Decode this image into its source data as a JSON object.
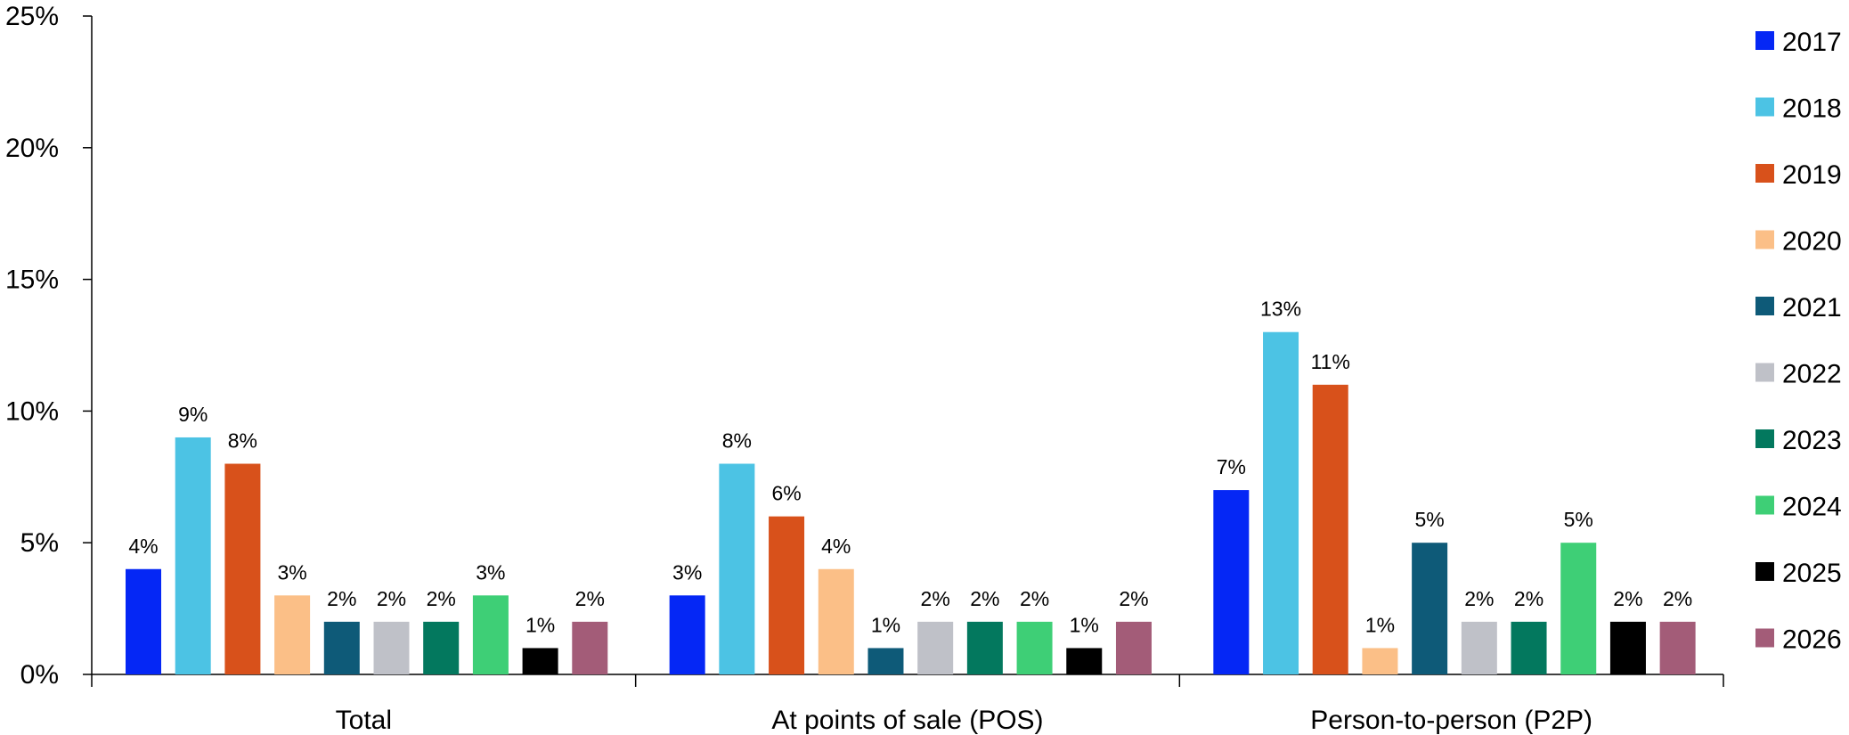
{
  "chart_data": {
    "type": "bar",
    "title": "",
    "xlabel": "",
    "ylabel": "",
    "ylim": [
      0,
      25
    ],
    "y_ticks": [
      "0%",
      "5%",
      "10%",
      "15%",
      "20%",
      "25%"
    ],
    "y_tick_values": [
      0,
      5,
      10,
      15,
      20,
      25
    ],
    "grid": false,
    "legend_position": "right",
    "categories": [
      "Total",
      "At points of sale (POS)",
      "Person-to-person (P2P)"
    ],
    "series": [
      {
        "name": "2017",
        "color": "#0527F5",
        "values": [
          4,
          3,
          7
        ],
        "labels": [
          "4%",
          "3%",
          "7%"
        ]
      },
      {
        "name": "2018",
        "color": "#4CC3E4",
        "values": [
          9,
          8,
          13
        ],
        "labels": [
          "9%",
          "8%",
          "13%"
        ]
      },
      {
        "name": "2019",
        "color": "#D8511B",
        "values": [
          8,
          6,
          11
        ],
        "labels": [
          "8%",
          "6%",
          "11%"
        ]
      },
      {
        "name": "2020",
        "color": "#FBBF87",
        "values": [
          3,
          4,
          1
        ],
        "labels": [
          "3%",
          "4%",
          "1%"
        ]
      },
      {
        "name": "2021",
        "color": "#0E5A78",
        "values": [
          2,
          1,
          5
        ],
        "labels": [
          "2%",
          "1%",
          "5%"
        ]
      },
      {
        "name": "2022",
        "color": "#BFC1C8",
        "values": [
          2,
          2,
          2
        ],
        "labels": [
          "2%",
          "2%",
          "2%"
        ]
      },
      {
        "name": "2023",
        "color": "#03785E",
        "values": [
          2,
          2,
          2
        ],
        "labels": [
          "2%",
          "2%",
          "2%"
        ]
      },
      {
        "name": "2024",
        "color": "#3ECF76",
        "values": [
          3,
          2,
          5
        ],
        "labels": [
          "3%",
          "2%",
          "5%"
        ]
      },
      {
        "name": "2025",
        "color": "#000000",
        "values": [
          1,
          1,
          2
        ],
        "labels": [
          "1%",
          "1%",
          "2%"
        ]
      },
      {
        "name": "2026",
        "color": "#A35C78",
        "values": [
          2,
          2,
          2
        ],
        "labels": [
          "2%",
          "2%",
          "2%"
        ]
      }
    ]
  }
}
